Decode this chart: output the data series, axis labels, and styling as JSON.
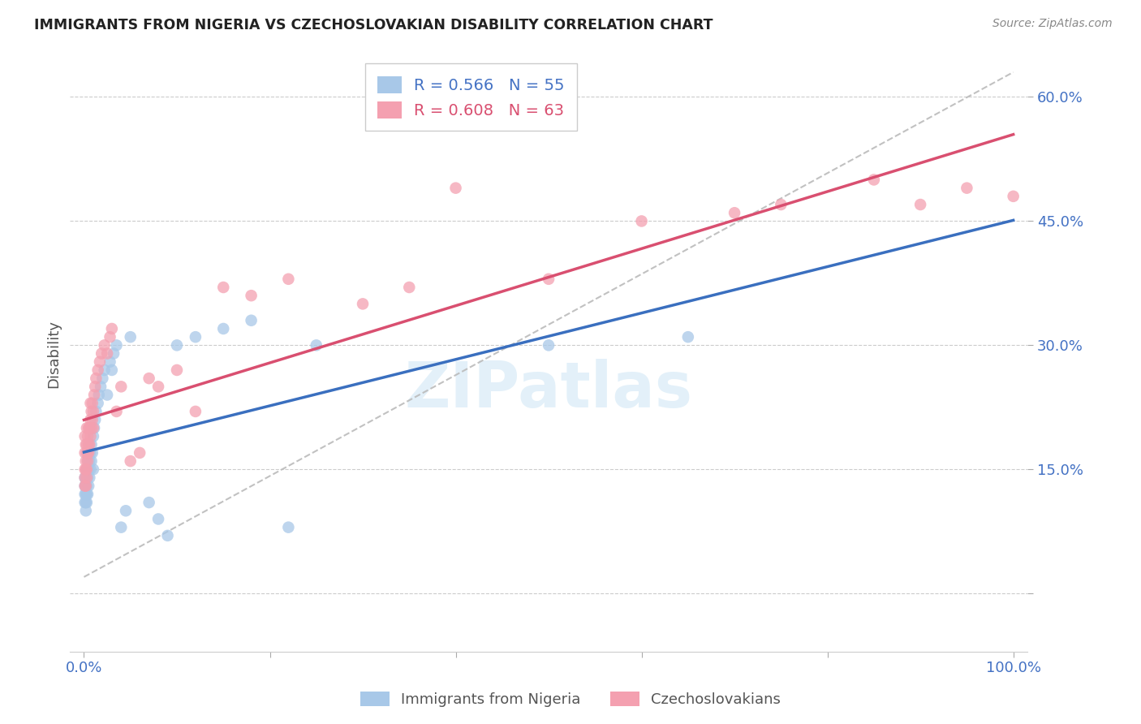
{
  "title": "IMMIGRANTS FROM NIGERIA VS CZECHOSLOVAKIAN DISABILITY CORRELATION CHART",
  "source": "Source: ZipAtlas.com",
  "ylabel": "Disability",
  "watermark": "ZIPatlas",
  "nigeria_color": "#a8c8e8",
  "nigeria_line_color": "#3a6fbf",
  "czech_color": "#f4a0b0",
  "czech_line_color": "#d94f70",
  "dash_line_color": "#aaaaaa",
  "nigeria_x": [
    0.001,
    0.001,
    0.001,
    0.001,
    0.002,
    0.002,
    0.002,
    0.002,
    0.002,
    0.003,
    0.003,
    0.003,
    0.003,
    0.004,
    0.004,
    0.004,
    0.005,
    0.005,
    0.005,
    0.006,
    0.006,
    0.007,
    0.007,
    0.008,
    0.008,
    0.009,
    0.01,
    0.01,
    0.011,
    0.012,
    0.013,
    0.015,
    0.016,
    0.018,
    0.02,
    0.022,
    0.025,
    0.028,
    0.03,
    0.032,
    0.035,
    0.04,
    0.045,
    0.05,
    0.07,
    0.08,
    0.09,
    0.1,
    0.12,
    0.15,
    0.18,
    0.22,
    0.25,
    0.5,
    0.65
  ],
  "nigeria_y": [
    0.11,
    0.12,
    0.13,
    0.14,
    0.1,
    0.11,
    0.12,
    0.13,
    0.14,
    0.11,
    0.12,
    0.13,
    0.15,
    0.12,
    0.14,
    0.16,
    0.13,
    0.15,
    0.17,
    0.14,
    0.16,
    0.15,
    0.17,
    0.16,
    0.18,
    0.17,
    0.15,
    0.19,
    0.2,
    0.21,
    0.22,
    0.23,
    0.24,
    0.25,
    0.26,
    0.27,
    0.24,
    0.28,
    0.27,
    0.29,
    0.3,
    0.08,
    0.1,
    0.31,
    0.11,
    0.09,
    0.07,
    0.3,
    0.31,
    0.32,
    0.33,
    0.08,
    0.3,
    0.3,
    0.31
  ],
  "czech_x": [
    0.001,
    0.001,
    0.001,
    0.001,
    0.001,
    0.002,
    0.002,
    0.002,
    0.002,
    0.003,
    0.003,
    0.003,
    0.003,
    0.003,
    0.004,
    0.004,
    0.004,
    0.005,
    0.005,
    0.005,
    0.006,
    0.006,
    0.007,
    0.007,
    0.007,
    0.008,
    0.008,
    0.009,
    0.009,
    0.01,
    0.01,
    0.011,
    0.012,
    0.013,
    0.015,
    0.017,
    0.019,
    0.022,
    0.025,
    0.028,
    0.03,
    0.035,
    0.04,
    0.05,
    0.06,
    0.07,
    0.08,
    0.1,
    0.12,
    0.15,
    0.18,
    0.22,
    0.3,
    0.35,
    0.4,
    0.5,
    0.6,
    0.7,
    0.75,
    0.85,
    0.9,
    0.95,
    1.0
  ],
  "czech_y": [
    0.13,
    0.14,
    0.15,
    0.17,
    0.19,
    0.13,
    0.15,
    0.16,
    0.18,
    0.14,
    0.15,
    0.17,
    0.18,
    0.2,
    0.16,
    0.17,
    0.19,
    0.17,
    0.18,
    0.2,
    0.18,
    0.2,
    0.19,
    0.21,
    0.23,
    0.2,
    0.22,
    0.21,
    0.23,
    0.2,
    0.22,
    0.24,
    0.25,
    0.26,
    0.27,
    0.28,
    0.29,
    0.3,
    0.29,
    0.31,
    0.32,
    0.22,
    0.25,
    0.16,
    0.17,
    0.26,
    0.25,
    0.27,
    0.22,
    0.37,
    0.36,
    0.38,
    0.35,
    0.37,
    0.49,
    0.38,
    0.45,
    0.46,
    0.47,
    0.5,
    0.47,
    0.49,
    0.48
  ],
  "xlim": [
    0.0,
    1.0
  ],
  "ylim": [
    -0.07,
    0.65
  ],
  "yticks": [
    0.0,
    0.15,
    0.3,
    0.45,
    0.6
  ],
  "ytick_labels": [
    "",
    "15.0%",
    "30.0%",
    "45.0%",
    "60.0%"
  ],
  "xtick_labels": [
    "0.0%",
    "",
    "",
    "",
    "",
    "100.0%"
  ],
  "background_color": "#ffffff",
  "grid_color": "#cccccc",
  "title_color": "#222222",
  "tick_color": "#4472c4"
}
